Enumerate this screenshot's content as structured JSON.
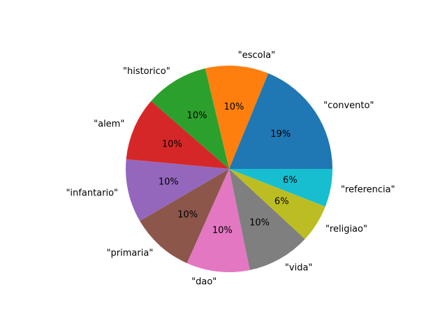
{
  "chart_data": {
    "type": "pie",
    "start_angle_deg": 0,
    "direction": "counterclockwise",
    "slices": [
      {
        "label": "\"convento\"",
        "value": 19,
        "pct_label": "19%",
        "color": "#1f77b4"
      },
      {
        "label": "\"escola\"",
        "value": 10,
        "pct_label": "10%",
        "color": "#ff7f0e"
      },
      {
        "label": "\"historico\"",
        "value": 10,
        "pct_label": "10%",
        "color": "#2ca02c"
      },
      {
        "label": "\"alem\"",
        "value": 10,
        "pct_label": "10%",
        "color": "#d62728"
      },
      {
        "label": "\"infantario\"",
        "value": 10,
        "pct_label": "10%",
        "color": "#9467bd"
      },
      {
        "label": "\"primaria\"",
        "value": 10,
        "pct_label": "10%",
        "color": "#8c564b"
      },
      {
        "label": "\"dao\"",
        "value": 10,
        "pct_label": "10%",
        "color": "#e377c2"
      },
      {
        "label": "\"vida\"",
        "value": 10,
        "pct_label": "10%",
        "color": "#7f7f7f"
      },
      {
        "label": "\"religiao\"",
        "value": 6,
        "pct_label": "6%",
        "color": "#bcbd22"
      },
      {
        "label": "\"referencia\"",
        "value": 6,
        "pct_label": "6%",
        "color": "#17becf"
      }
    ]
  }
}
